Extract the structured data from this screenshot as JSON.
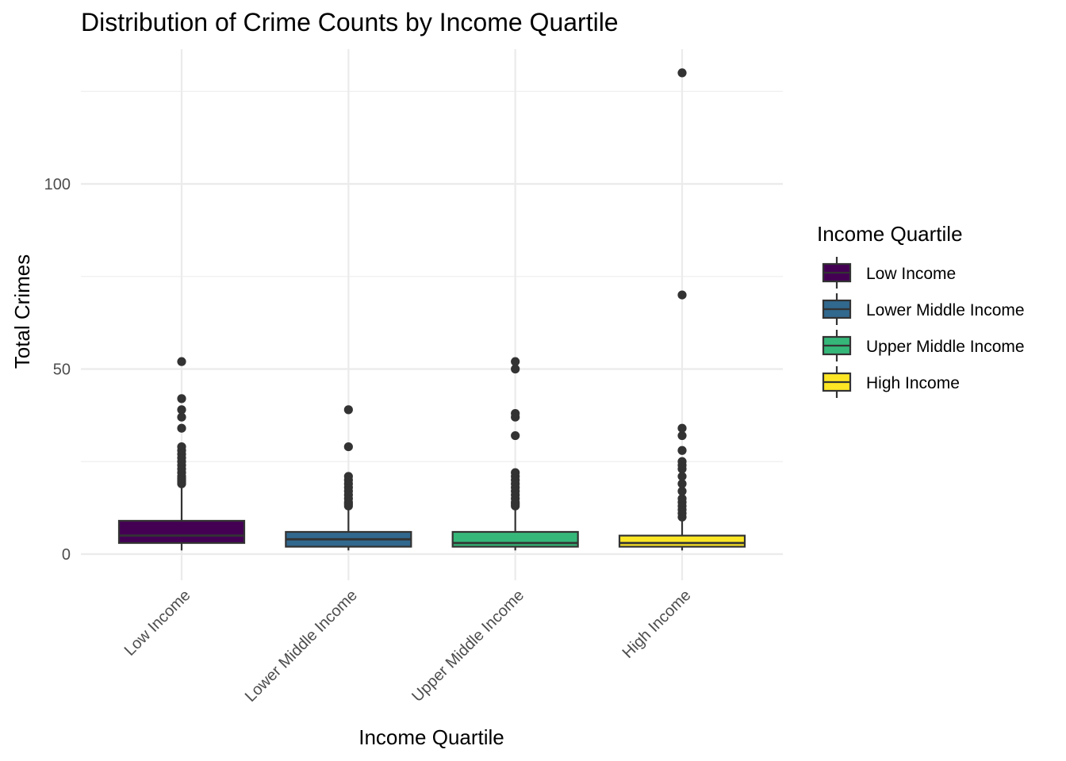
{
  "chart_data": {
    "type": "boxplot",
    "title": "Distribution of Crime Counts by Income Quartile",
    "xlabel": "Income Quartile",
    "ylabel": "Total Crimes",
    "ylim": [
      -6,
      136
    ],
    "yticks": [
      0,
      50,
      100
    ],
    "grid": true,
    "legend": {
      "title": "Income Quartile",
      "placement": "right"
    },
    "categories": [
      "Low Income",
      "Lower Middle Income",
      "Upper Middle Income",
      "High Income"
    ],
    "series": [
      {
        "name": "Low Income",
        "color": "#440154",
        "whisker_low": 1,
        "q1": 3,
        "median": 5,
        "q3": 9,
        "whisker_high": 18,
        "outliers": [
          19,
          19.5,
          20,
          20.5,
          21,
          22,
          23,
          24,
          25,
          26,
          27,
          28,
          29,
          34,
          37,
          39,
          42,
          52
        ]
      },
      {
        "name": "Lower Middle Income",
        "color": "#31688E",
        "whisker_low": 1,
        "q1": 2,
        "median": 4,
        "q3": 6,
        "whisker_high": 12,
        "outliers": [
          13,
          13.5,
          14,
          15,
          16,
          17,
          18,
          19,
          20,
          21,
          29,
          39
        ]
      },
      {
        "name": "Upper Middle Income",
        "color": "#35B779",
        "whisker_low": 1,
        "q1": 2,
        "median": 3,
        "q3": 6,
        "whisker_high": 12,
        "outliers": [
          13,
          13.5,
          14,
          15,
          16,
          17,
          18,
          19,
          20,
          21,
          22,
          32,
          37,
          38,
          50,
          52
        ]
      },
      {
        "name": "High Income",
        "color": "#FDE725",
        "whisker_low": 1,
        "q1": 2,
        "median": 3,
        "q3": 5,
        "whisker_high": 9,
        "outliers": [
          10,
          11,
          12,
          13,
          14,
          15,
          17,
          19,
          21,
          23,
          24,
          25,
          28,
          32,
          34,
          70,
          130
        ]
      }
    ]
  }
}
